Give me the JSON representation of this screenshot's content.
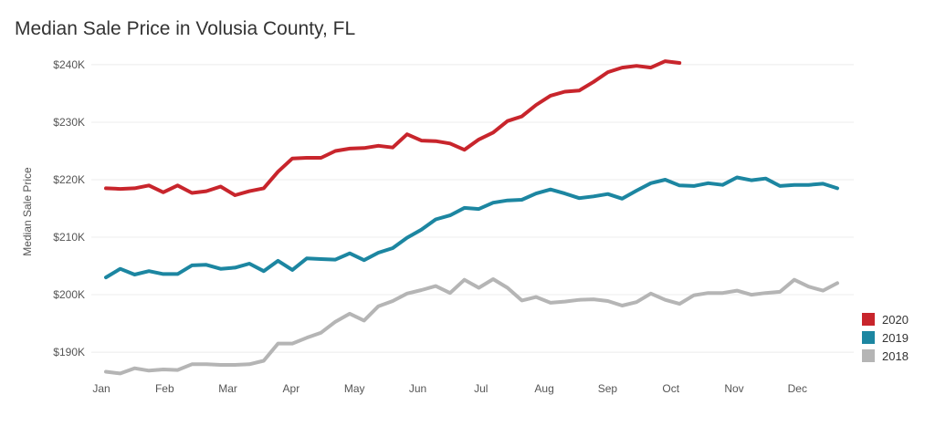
{
  "page": {
    "title": "Median Sale Price in Volusia County, FL"
  },
  "chart_data": {
    "type": "line",
    "title": "Median Sale Price in Volusia County, FL",
    "xlabel": "",
    "ylabel": "Median Sale Price",
    "ylim": [
      187000,
      243000
    ],
    "y_ticks": [
      190000,
      200000,
      210000,
      220000,
      230000,
      240000
    ],
    "y_tick_labels": [
      "$190K",
      "$200K",
      "$210K",
      "$220K",
      "$230K",
      "$240K"
    ],
    "x_tick_labels": [
      "Jan",
      "Feb",
      "Mar",
      "Apr",
      "May",
      "Jun",
      "Jul",
      "Aug",
      "Sep",
      "Oct",
      "Nov",
      "Dec"
    ],
    "x_unit": "week",
    "xlim": [
      1,
      53
    ],
    "grid": "horizontal",
    "legend": "bottom-right",
    "series": [
      {
        "name": "2020",
        "color": "#c8252c",
        "x": [
          1,
          2,
          3,
          4,
          5,
          6,
          7,
          8,
          9,
          10,
          11,
          12,
          13,
          14,
          15,
          16,
          17,
          18,
          19,
          20,
          21,
          22,
          23,
          24,
          25,
          26,
          27,
          28,
          29,
          30,
          31,
          32,
          33,
          34,
          35,
          36,
          37,
          38,
          39,
          40,
          41,
          42
        ],
        "values": [
          218500,
          218400,
          218500,
          219000,
          217800,
          219000,
          217700,
          218000,
          218800,
          217300,
          218000,
          218500,
          221400,
          223700,
          223800,
          223800,
          225000,
          225400,
          225500,
          225900,
          225600,
          227900,
          226800,
          226700,
          226300,
          225200,
          227000,
          228200,
          230200,
          231000,
          233000,
          234600,
          235300,
          235500,
          237000,
          238700,
          239500,
          239800,
          239500,
          240600,
          240300,
          null
        ]
      },
      {
        "name": "2019",
        "color": "#1c86a1",
        "x": [
          1,
          2,
          3,
          4,
          5,
          6,
          7,
          8,
          9,
          10,
          11,
          12,
          13,
          14,
          15,
          16,
          17,
          18,
          19,
          20,
          21,
          22,
          23,
          24,
          25,
          26,
          27,
          28,
          29,
          30,
          31,
          32,
          33,
          34,
          35,
          36,
          37,
          38,
          39,
          40,
          41,
          42,
          43,
          44,
          45,
          46,
          47,
          48,
          49,
          50,
          51,
          52
        ],
        "values": [
          203000,
          204500,
          203500,
          204100,
          203600,
          203600,
          205100,
          205200,
          204500,
          204700,
          205400,
          204100,
          205900,
          204300,
          206300,
          206200,
          206100,
          207200,
          206000,
          207300,
          208100,
          209900,
          211300,
          213100,
          213800,
          215100,
          214900,
          216000,
          216400,
          216500,
          217600,
          218300,
          217600,
          216800,
          217100,
          217500,
          216700,
          218100,
          219400,
          220000,
          219000,
          218900,
          219400,
          219100,
          220400,
          219900,
          220200,
          218900,
          219100,
          219100,
          219300,
          218500
        ]
      },
      {
        "name": "2018",
        "color": "#b5b5b5",
        "x": [
          1,
          2,
          3,
          4,
          5,
          6,
          7,
          8,
          9,
          10,
          11,
          12,
          13,
          14,
          15,
          16,
          17,
          18,
          19,
          20,
          21,
          22,
          23,
          24,
          25,
          26,
          27,
          28,
          29,
          30,
          31,
          32,
          33,
          34,
          35,
          36,
          37,
          38,
          39,
          40,
          41,
          42,
          43,
          44,
          45,
          46,
          47,
          48,
          49,
          50,
          51,
          52
        ],
        "values": [
          186600,
          186300,
          187200,
          186800,
          187000,
          186900,
          187900,
          187900,
          187800,
          187800,
          187900,
          188500,
          191500,
          191500,
          192500,
          193400,
          195300,
          196700,
          195500,
          198000,
          198900,
          200200,
          200800,
          201500,
          200300,
          202600,
          201200,
          202700,
          201200,
          199000,
          199600,
          198600,
          198800,
          199100,
          199200,
          198900,
          198100,
          198700,
          200200,
          199100,
          198400,
          199900,
          200300,
          200300,
          200700,
          200000,
          200300,
          200500,
          202600,
          201400,
          200700,
          202000
        ]
      }
    ]
  }
}
